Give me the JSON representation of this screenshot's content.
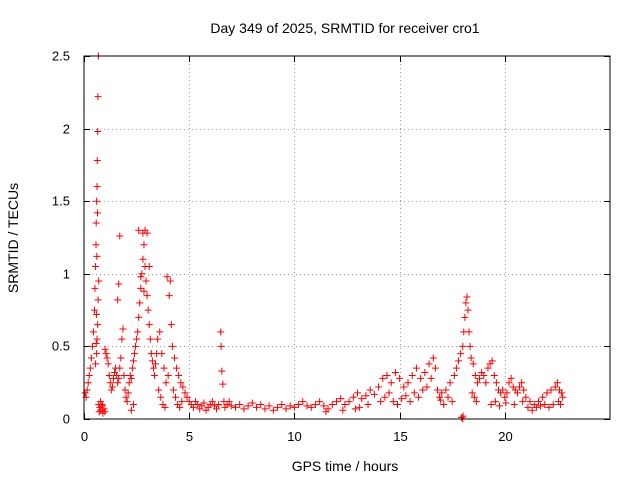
{
  "chart_data": {
    "type": "scatter",
    "title": "Day 349 of 2025, SRMTID for receiver cro1",
    "xlabel": "GPS time / hours",
    "ylabel": "SRMTID / TECUs",
    "xlim": [
      0,
      25
    ],
    "ylim": [
      0,
      2.5
    ],
    "xticks": [
      0,
      5,
      10,
      15,
      20
    ],
    "yticks": [
      0,
      0.5,
      1,
      1.5,
      2,
      2.5
    ],
    "xtick_labels": [
      "0",
      "5",
      "10",
      "15",
      "20"
    ],
    "ytick_labels": [
      "0",
      "0.5",
      "1",
      "1.5",
      "2",
      "2.5"
    ],
    "grid": true,
    "marker": "+",
    "color": "#ff0000",
    "series": [
      {
        "name": "SRMTID",
        "points": [
          [
            0.05,
            0.18
          ],
          [
            0.1,
            0.15
          ],
          [
            0.15,
            0.2
          ],
          [
            0.2,
            0.25
          ],
          [
            0.25,
            0.3
          ],
          [
            0.3,
            0.35
          ],
          [
            0.35,
            0.42
          ],
          [
            0.4,
            0.5
          ],
          [
            0.45,
            0.6
          ],
          [
            0.5,
            0.75
          ],
          [
            0.52,
            0.9
          ],
          [
            0.55,
            1.05
          ],
          [
            0.57,
            1.2
          ],
          [
            0.58,
            1.35
          ],
          [
            0.6,
            1.5
          ],
          [
            0.62,
            1.6
          ],
          [
            0.63,
            1.78
          ],
          [
            0.65,
            1.98
          ],
          [
            0.66,
            2.22
          ],
          [
            0.68,
            2.5
          ],
          [
            0.6,
            0.45
          ],
          [
            0.62,
            0.55
          ],
          [
            0.65,
            0.65
          ],
          [
            0.67,
            0.82
          ],
          [
            0.7,
            0.95
          ],
          [
            0.55,
            0.38
          ],
          [
            0.58,
            0.52
          ],
          [
            0.61,
            1.12
          ],
          [
            0.64,
            1.42
          ],
          [
            0.59,
            0.72
          ],
          [
            0.7,
            0.1
          ],
          [
            0.72,
            0.05
          ],
          [
            0.75,
            0.08
          ],
          [
            0.8,
            0.06
          ],
          [
            0.85,
            0.1
          ],
          [
            0.9,
            0.04
          ],
          [
            0.95,
            0.07
          ],
          [
            1.0,
            0.05
          ],
          [
            0.78,
            0.12
          ],
          [
            0.88,
            0.09
          ],
          [
            1.0,
            0.48
          ],
          [
            1.05,
            0.45
          ],
          [
            1.1,
            0.42
          ],
          [
            1.15,
            0.38
          ],
          [
            1.2,
            0.3
          ],
          [
            1.25,
            0.25
          ],
          [
            1.3,
            0.2
          ],
          [
            1.35,
            0.22
          ],
          [
            1.4,
            0.28
          ],
          [
            1.45,
            0.32
          ],
          [
            1.5,
            0.35
          ],
          [
            1.55,
            0.3
          ],
          [
            1.6,
            0.25
          ],
          [
            1.65,
            0.28
          ],
          [
            1.7,
            0.35
          ],
          [
            1.75,
            0.42
          ],
          [
            1.8,
            0.55
          ],
          [
            1.85,
            0.62
          ],
          [
            1.9,
            0.3
          ],
          [
            1.95,
            0.2
          ],
          [
            2.0,
            0.15
          ],
          [
            2.05,
            0.12
          ],
          [
            2.1,
            0.18
          ],
          [
            2.15,
            0.25
          ],
          [
            2.2,
            0.3
          ],
          [
            2.25,
            0.28
          ],
          [
            2.3,
            0.35
          ],
          [
            2.35,
            0.4
          ],
          [
            2.4,
            0.45
          ],
          [
            2.45,
            0.5
          ],
          [
            2.5,
            0.55
          ],
          [
            2.55,
            0.6
          ],
          [
            2.6,
            0.7
          ],
          [
            2.65,
            0.8
          ],
          [
            2.7,
            0.9
          ],
          [
            2.75,
            1.0
          ],
          [
            2.8,
            1.1
          ],
          [
            2.85,
            1.2
          ],
          [
            2.9,
            1.05
          ],
          [
            2.95,
            0.95
          ],
          [
            3.0,
            0.85
          ],
          [
            3.05,
            0.75
          ],
          [
            3.1,
            0.65
          ],
          [
            3.15,
            0.55
          ],
          [
            3.2,
            0.45
          ],
          [
            3.25,
            0.4
          ],
          [
            3.3,
            0.35
          ],
          [
            3.35,
            0.3
          ],
          [
            3.4,
            0.38
          ],
          [
            3.45,
            0.45
          ],
          [
            1.6,
            0.82
          ],
          [
            1.65,
            0.93
          ],
          [
            1.7,
            1.26
          ],
          [
            2.6,
            1.3
          ],
          [
            2.8,
            1.28
          ],
          [
            2.9,
            1.3
          ],
          [
            3.0,
            1.28
          ],
          [
            3.1,
            1.05
          ],
          [
            2.7,
            0.98
          ],
          [
            2.85,
            0.88
          ],
          [
            3.5,
            0.55
          ],
          [
            3.6,
            0.6
          ],
          [
            3.7,
            0.45
          ],
          [
            3.8,
            0.35
          ],
          [
            3.9,
            0.25
          ],
          [
            4.0,
            0.3
          ],
          [
            4.05,
            0.85
          ],
          [
            4.1,
            0.95
          ],
          [
            3.95,
            0.98
          ],
          [
            4.15,
            0.65
          ],
          [
            4.2,
            0.5
          ],
          [
            4.3,
            0.42
          ],
          [
            4.4,
            0.35
          ],
          [
            4.5,
            0.3
          ],
          [
            4.6,
            0.25
          ],
          [
            4.7,
            0.22
          ],
          [
            4.8,
            0.18
          ],
          [
            4.9,
            0.15
          ],
          [
            5.0,
            0.12
          ],
          [
            4.25,
            0.2
          ],
          [
            4.35,
            0.15
          ],
          [
            4.45,
            0.1
          ],
          [
            4.55,
            0.08
          ],
          [
            4.65,
            0.12
          ],
          [
            3.75,
            0.1
          ],
          [
            3.85,
            0.08
          ],
          [
            3.65,
            0.15
          ],
          [
            3.55,
            0.2
          ],
          [
            2.35,
            0.1
          ],
          [
            2.25,
            0.06
          ],
          [
            5.1,
            0.1
          ],
          [
            5.2,
            0.08
          ],
          [
            5.3,
            0.12
          ],
          [
            5.4,
            0.1
          ],
          [
            5.5,
            0.07
          ],
          [
            5.6,
            0.09
          ],
          [
            5.7,
            0.11
          ],
          [
            5.8,
            0.06
          ],
          [
            5.9,
            0.08
          ],
          [
            6.0,
            0.1
          ],
          [
            6.1,
            0.12
          ],
          [
            6.2,
            0.09
          ],
          [
            6.3,
            0.07
          ],
          [
            6.4,
            0.1
          ],
          [
            6.5,
            0.6
          ],
          [
            6.52,
            0.5
          ],
          [
            6.55,
            0.33
          ],
          [
            6.6,
            0.24
          ],
          [
            6.65,
            0.12
          ],
          [
            6.7,
            0.08
          ],
          [
            6.8,
            0.1
          ],
          [
            6.9,
            0.12
          ],
          [
            7.0,
            0.09
          ],
          [
            7.2,
            0.08
          ],
          [
            7.4,
            0.1
          ],
          [
            7.6,
            0.07
          ],
          [
            7.8,
            0.09
          ],
          [
            8.0,
            0.11
          ],
          [
            8.2,
            0.08
          ],
          [
            8.4,
            0.1
          ],
          [
            8.6,
            0.07
          ],
          [
            8.8,
            0.09
          ],
          [
            9.0,
            0.06
          ],
          [
            9.2,
            0.08
          ],
          [
            9.4,
            0.1
          ],
          [
            9.6,
            0.07
          ],
          [
            9.8,
            0.09
          ],
          [
            10.0,
            0.08
          ],
          [
            10.2,
            0.1
          ],
          [
            10.4,
            0.12
          ],
          [
            10.6,
            0.09
          ],
          [
            10.8,
            0.08
          ],
          [
            11.0,
            0.1
          ],
          [
            11.2,
            0.12
          ],
          [
            11.4,
            0.09
          ],
          [
            11.6,
            0.07
          ],
          [
            11.8,
            0.1
          ],
          [
            12.0,
            0.12
          ],
          [
            12.2,
            0.14
          ],
          [
            12.4,
            0.1
          ],
          [
            12.6,
            0.12
          ],
          [
            12.8,
            0.15
          ],
          [
            13.0,
            0.18
          ],
          [
            13.2,
            0.14
          ],
          [
            13.4,
            0.16
          ],
          [
            13.6,
            0.2
          ],
          [
            13.8,
            0.17
          ],
          [
            14.0,
            0.22
          ],
          [
            14.2,
            0.28
          ],
          [
            14.4,
            0.3
          ],
          [
            14.6,
            0.25
          ],
          [
            14.8,
            0.32
          ],
          [
            15.0,
            0.28
          ],
          [
            15.2,
            0.22
          ],
          [
            15.4,
            0.25
          ],
          [
            15.6,
            0.3
          ],
          [
            15.8,
            0.35
          ],
          [
            16.0,
            0.28
          ],
          [
            16.2,
            0.32
          ],
          [
            16.4,
            0.38
          ],
          [
            14.1,
            0.12
          ],
          [
            14.3,
            0.15
          ],
          [
            14.5,
            0.18
          ],
          [
            14.7,
            0.12
          ],
          [
            14.9,
            0.1
          ],
          [
            15.1,
            0.14
          ],
          [
            15.3,
            0.16
          ],
          [
            15.5,
            0.12
          ],
          [
            15.7,
            0.18
          ],
          [
            15.9,
            0.15
          ],
          [
            16.1,
            0.2
          ],
          [
            16.3,
            0.22
          ],
          [
            16.5,
            0.28
          ],
          [
            16.6,
            0.42
          ],
          [
            16.7,
            0.35
          ],
          [
            16.8,
            0.2
          ],
          [
            16.9,
            0.15
          ],
          [
            17.0,
            0.18
          ],
          [
            17.2,
            0.2
          ],
          [
            17.4,
            0.25
          ],
          [
            17.6,
            0.3
          ],
          [
            17.7,
            0.35
          ],
          [
            17.8,
            0.4
          ],
          [
            17.9,
            0.45
          ],
          [
            18.0,
            0.5
          ],
          [
            18.05,
            0.6
          ],
          [
            18.1,
            0.7
          ],
          [
            18.15,
            0.8
          ],
          [
            18.2,
            0.84
          ],
          [
            18.25,
            0.75
          ],
          [
            18.3,
            0.6
          ],
          [
            18.35,
            0.5
          ],
          [
            18.4,
            0.42
          ],
          [
            18.5,
            0.38
          ],
          [
            18.6,
            0.3
          ],
          [
            18.7,
            0.25
          ],
          [
            18.8,
            0.28
          ],
          [
            18.9,
            0.32
          ],
          [
            19.0,
            0.3
          ],
          [
            19.1,
            0.25
          ],
          [
            17.5,
            0.12
          ],
          [
            17.3,
            0.15
          ],
          [
            17.1,
            0.1
          ],
          [
            16.95,
            0.13
          ],
          [
            18.45,
            0.18
          ],
          [
            18.55,
            0.15
          ],
          [
            18.65,
            0.12
          ],
          [
            17.95,
            0.01
          ],
          [
            18.0,
            0.0
          ],
          [
            18.02,
            0.02
          ],
          [
            19.2,
            0.35
          ],
          [
            19.3,
            0.38
          ],
          [
            19.4,
            0.4
          ],
          [
            19.5,
            0.3
          ],
          [
            19.6,
            0.25
          ],
          [
            19.7,
            0.2
          ],
          [
            19.8,
            0.18
          ],
          [
            19.9,
            0.2
          ],
          [
            20.0,
            0.15
          ],
          [
            20.1,
            0.18
          ],
          [
            20.2,
            0.25
          ],
          [
            20.3,
            0.28
          ],
          [
            20.4,
            0.22
          ],
          [
            20.5,
            0.2
          ],
          [
            20.6,
            0.18
          ],
          [
            20.7,
            0.22
          ],
          [
            20.8,
            0.25
          ],
          [
            20.9,
            0.2
          ],
          [
            21.0,
            0.15
          ],
          [
            21.2,
            0.12
          ],
          [
            21.4,
            0.1
          ],
          [
            21.6,
            0.12
          ],
          [
            21.8,
            0.15
          ],
          [
            22.0,
            0.18
          ],
          [
            22.2,
            0.2
          ],
          [
            22.4,
            0.22
          ],
          [
            22.5,
            0.25
          ],
          [
            22.6,
            0.2
          ],
          [
            22.7,
            0.18
          ],
          [
            22.75,
            0.15
          ],
          [
            19.35,
            0.1
          ],
          [
            19.55,
            0.12
          ],
          [
            19.75,
            0.09
          ],
          [
            20.05,
            0.11
          ],
          [
            20.45,
            0.1
          ],
          [
            20.85,
            0.12
          ],
          [
            21.1,
            0.08
          ],
          [
            21.3,
            0.06
          ],
          [
            21.5,
            0.08
          ],
          [
            21.7,
            0.09
          ],
          [
            21.9,
            0.1
          ],
          [
            22.1,
            0.08
          ],
          [
            22.3,
            0.1
          ],
          [
            22.55,
            0.12
          ],
          [
            22.65,
            0.1
          ],
          [
            13.1,
            0.08
          ],
          [
            13.5,
            0.1
          ],
          [
            12.9,
            0.07
          ],
          [
            12.3,
            0.06
          ],
          [
            11.5,
            0.05
          ]
        ]
      }
    ]
  }
}
